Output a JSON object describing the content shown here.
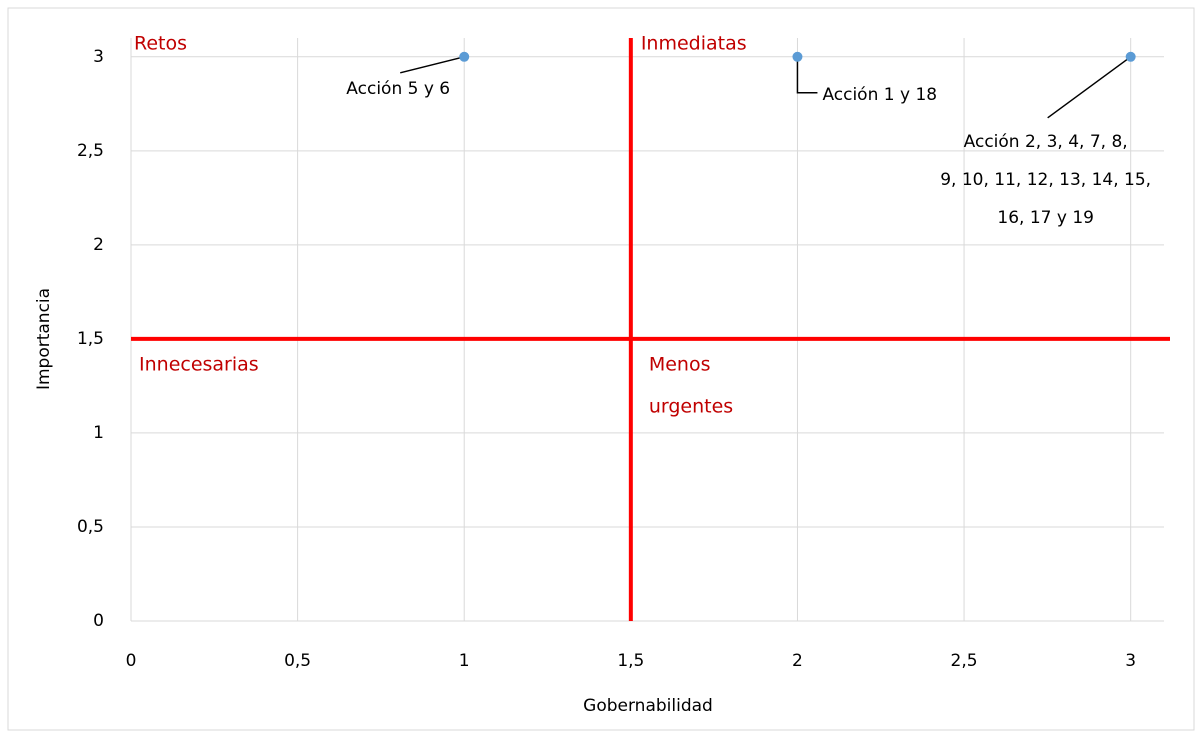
{
  "chart_data": {
    "type": "scatter",
    "x_label": "Gobernabilidad",
    "y_label": "Importancia",
    "x": [
      1,
      2,
      3
    ],
    "values": [
      3,
      3,
      3
    ],
    "color": "#5b9bd5",
    "xlim": [
      0,
      3.1
    ],
    "ylim": [
      0,
      3.1
    ],
    "xticks": [
      0,
      {
        "value": 0.5,
        "label": "0,5"
      },
      1,
      {
        "value": 1.5,
        "label": "1,5"
      },
      2,
      {
        "value": 2.5,
        "label": "2,5"
      },
      3
    ],
    "yticks": [
      0,
      {
        "value": 0.5,
        "label": "0,5"
      },
      1,
      {
        "value": 1.5,
        "label": "1,5"
      },
      2,
      {
        "value": 2.5,
        "label": "2,5"
      },
      3
    ],
    "grid": true,
    "reference_lines": {
      "x": 1.5,
      "y": 1.5,
      "color": "#ff0000"
    },
    "quadrant_labels": [
      [
        "Retos"
      ],
      [
        "Inmediatas"
      ],
      [
        "Innecesarias"
      ],
      [
        "Menos",
        "urgentes"
      ]
    ],
    "quadrant_color": "#c00000",
    "annotations": [
      {
        "lines": [
          "Acción  5 y 6"
        ]
      },
      {
        "lines": [
          "Acción 1 y 18"
        ]
      },
      {
        "lines": [
          "Acción  2, 3, 4, 7, 8,",
          "9, 10, 11, 12, 13, 14, 15,",
          "16, 17 y 19"
        ]
      }
    ]
  }
}
